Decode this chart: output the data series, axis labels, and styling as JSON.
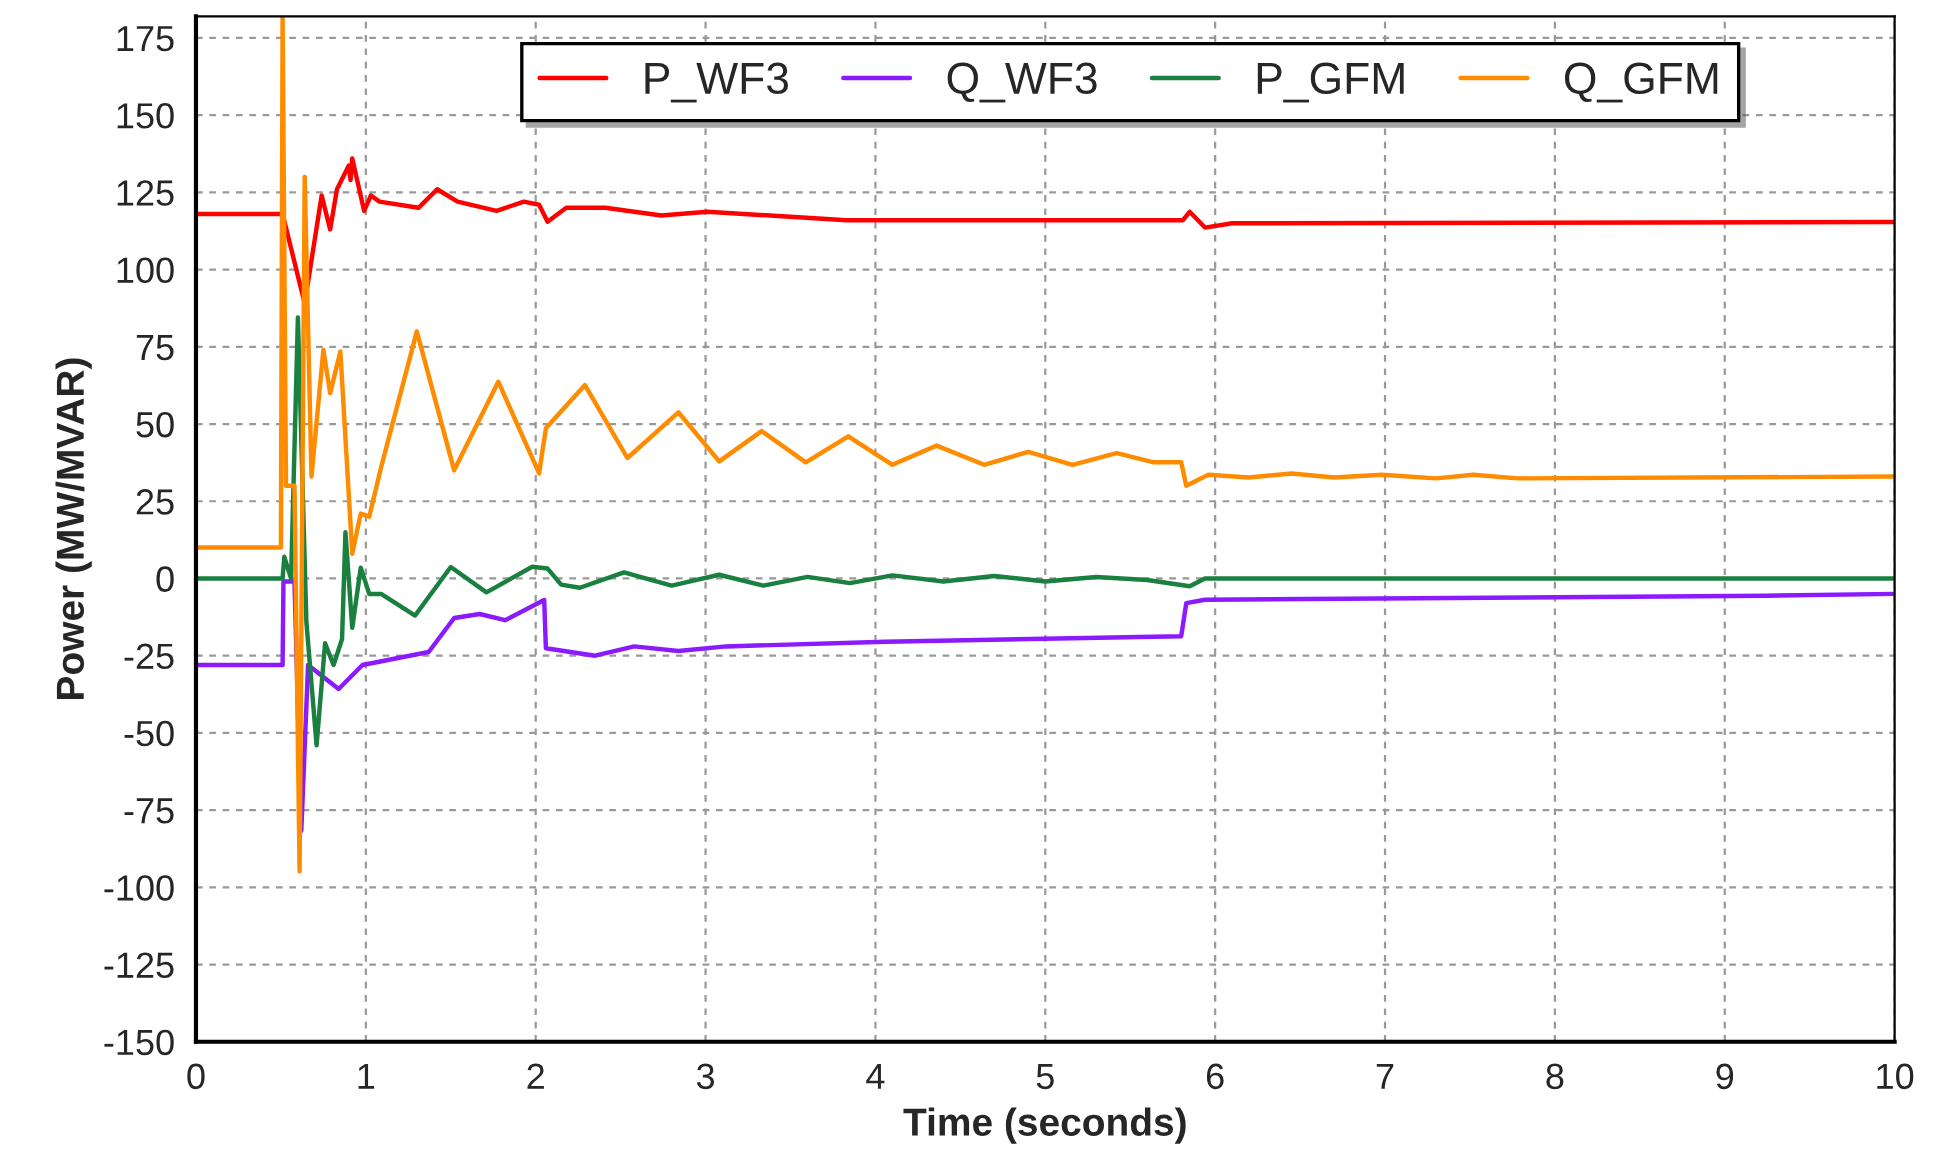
{
  "chart_data": {
    "type": "line",
    "xlabel": "Time (seconds)",
    "ylabel": "Power (MW/MVAR)",
    "xlim": [
      0,
      10
    ],
    "ylim": [
      -150,
      182
    ],
    "xticks": [
      0,
      1,
      2,
      3,
      4,
      5,
      6,
      7,
      8,
      9,
      10
    ],
    "yticks": [
      -150,
      -125,
      -100,
      -75,
      -50,
      -25,
      0,
      25,
      50,
      75,
      100,
      125,
      150,
      175
    ],
    "grid": true,
    "legend": "top",
    "line_style": "solid",
    "marker": "none",
    "series": [
      {
        "name": "P_WF3",
        "color": "#ff0000",
        "x": [
          0,
          0.51,
          0.64,
          0.74,
          0.79,
          0.83,
          0.9,
          0.91,
          0.92,
          0.99,
          1.03,
          1.08,
          1.31,
          1.42,
          1.54,
          1.77,
          1.93,
          2.02,
          2.07,
          2.18,
          2.41,
          2.74,
          3.01,
          3.83,
          4.71,
          5.81,
          5.85,
          5.94,
          6.1,
          10
        ],
        "values": [
          118,
          118,
          89,
          124,
          113,
          126,
          133.7,
          129,
          136,
          119,
          124,
          122,
          120,
          126,
          122,
          119,
          122,
          121,
          115.5,
          120,
          120,
          117.5,
          118.7,
          116,
          116,
          116,
          118.7,
          113.6,
          115,
          115.4
        ]
      },
      {
        "name": "Q_WF3",
        "color": "#8b1aff",
        "x": [
          0,
          0.51,
          0.515,
          0.58,
          0.62,
          0.66,
          0.84,
          0.98,
          1.37,
          1.52,
          1.67,
          1.82,
          2.05,
          2.06,
          2.35,
          2.58,
          2.84,
          3.12,
          4.06,
          5.8,
          5.83,
          5.94,
          9.24,
          10
        ],
        "values": [
          -28,
          -28,
          -1,
          -1,
          -81.7,
          -28,
          -35.8,
          -28,
          -23.8,
          -12.8,
          -11.5,
          -13.5,
          -7,
          -22.6,
          -25,
          -22,
          -23.5,
          -22,
          -20.5,
          -18.7,
          -8,
          -6.9,
          -5.6,
          -5
        ]
      },
      {
        "name": "P_GFM",
        "color": "#1a8040",
        "x": [
          0,
          0.51,
          0.52,
          0.56,
          0.6,
          0.65,
          0.71,
          0.76,
          0.81,
          0.86,
          0.88,
          0.92,
          0.97,
          1.02,
          1.09,
          1.29,
          1.5,
          1.71,
          1.98,
          2.07,
          2.15,
          2.26,
          2.52,
          2.8,
          3.08,
          3.34,
          3.6,
          3.85,
          4.1,
          4.4,
          4.7,
          5.0,
          5.3,
          5.6,
          5.85,
          5.94,
          10
        ],
        "values": [
          0,
          0,
          7,
          0,
          84.5,
          -14,
          -54,
          -21,
          -28,
          -19.6,
          15,
          -16,
          3.5,
          -5,
          -5,
          -12,
          3.7,
          -4.5,
          3.8,
          3.2,
          -2,
          -3,
          2,
          -2.3,
          1.2,
          -2.3,
          0.5,
          -1.5,
          1,
          -1,
          0.8,
          -1,
          0.5,
          -0.5,
          -2.5,
          0,
          0
        ]
      },
      {
        "name": "Q_GFM",
        "color": "#ff8c00",
        "x": [
          0,
          0.5,
          0.51,
          0.53,
          0.58,
          0.61,
          0.64,
          0.68,
          0.75,
          0.79,
          0.85,
          0.92,
          0.97,
          1.02,
          1.09,
          1.3,
          1.52,
          1.78,
          2.02,
          2.06,
          2.29,
          2.54,
          2.84,
          3.08,
          3.33,
          3.59,
          3.84,
          4.1,
          4.36,
          4.64,
          4.9,
          5.16,
          5.42,
          5.64,
          5.8,
          5.83,
          5.96,
          6.2,
          6.45,
          6.7,
          6.98,
          7.3,
          7.52,
          7.78,
          10
        ],
        "values": [
          10,
          10,
          182,
          30,
          30,
          -94.8,
          130,
          33,
          74,
          60,
          73.5,
          8,
          21,
          20,
          36,
          80,
          35,
          63.7,
          34,
          48.6,
          62.6,
          39,
          53.8,
          37.9,
          47.7,
          37.6,
          46,
          36.8,
          43,
          36.8,
          41,
          36.8,
          40.6,
          37.6,
          37.6,
          30,
          33.6,
          32.7,
          34,
          32.7,
          33.6,
          32.4,
          33.6,
          32.4,
          33
        ]
      }
    ]
  }
}
